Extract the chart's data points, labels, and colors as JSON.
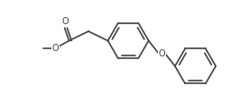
{
  "line_color": "#404040",
  "bg_color": "#ffffff",
  "line_width": 1.2,
  "figsize": [
    2.76,
    1.24
  ],
  "dpi": 100,
  "xlim": [
    0,
    10
  ],
  "ylim": [
    0,
    4.5
  ]
}
